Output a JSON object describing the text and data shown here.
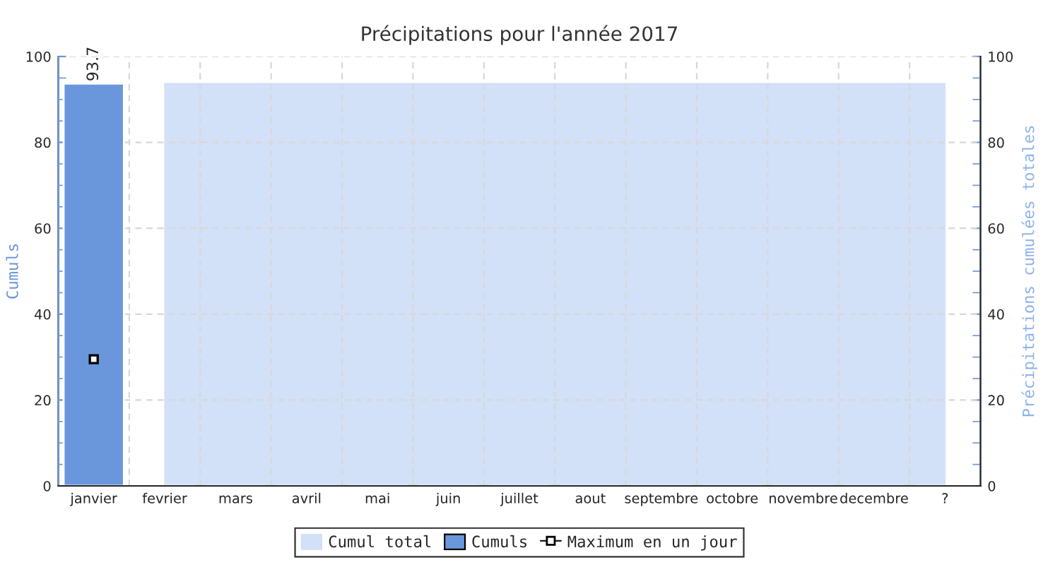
{
  "chart_data": {
    "type": "bar",
    "title": "Précipitations pour l'année 2017",
    "ylabel": "Cumuls",
    "y2label": "Précipitations cumulées totales",
    "categories": [
      "janvier",
      "fevrier",
      "mars",
      "avril",
      "mai",
      "juin",
      "juillet",
      "aout",
      "septembre",
      "octobre",
      "novembre",
      "decembre",
      "?"
    ],
    "series": [
      {
        "name": "Cumul total",
        "type": "area",
        "axis": "y2",
        "color": "#d2e0f8",
        "values": [
          null,
          93.7,
          93.7,
          93.7,
          93.7,
          93.7,
          93.7,
          93.7,
          93.7,
          93.7,
          93.7,
          93.7,
          93.7
        ]
      },
      {
        "name": "Cumuls",
        "color": "#6a97dc",
        "values": [
          93.7,
          null,
          null,
          null,
          null,
          null,
          null,
          null,
          null,
          null,
          null,
          null,
          null
        ],
        "value_labels": [
          "93.7",
          null,
          null,
          null,
          null,
          null,
          null,
          null,
          null,
          null,
          null,
          null,
          null
        ]
      },
      {
        "name": "Maximum en un jour",
        "type": "scatter",
        "marker": "square",
        "color": "#000000",
        "values": [
          29.5,
          null,
          null,
          null,
          null,
          null,
          null,
          null,
          null,
          null,
          null,
          null,
          null
        ]
      }
    ],
    "ylim": [
      0,
      100
    ],
    "yticks": [
      0,
      20,
      40,
      60,
      80,
      100
    ],
    "y2lim": [
      0,
      100
    ],
    "y2ticks": [
      0,
      20,
      40,
      60,
      80,
      100
    ],
    "grid": true,
    "legend": "bottom"
  }
}
